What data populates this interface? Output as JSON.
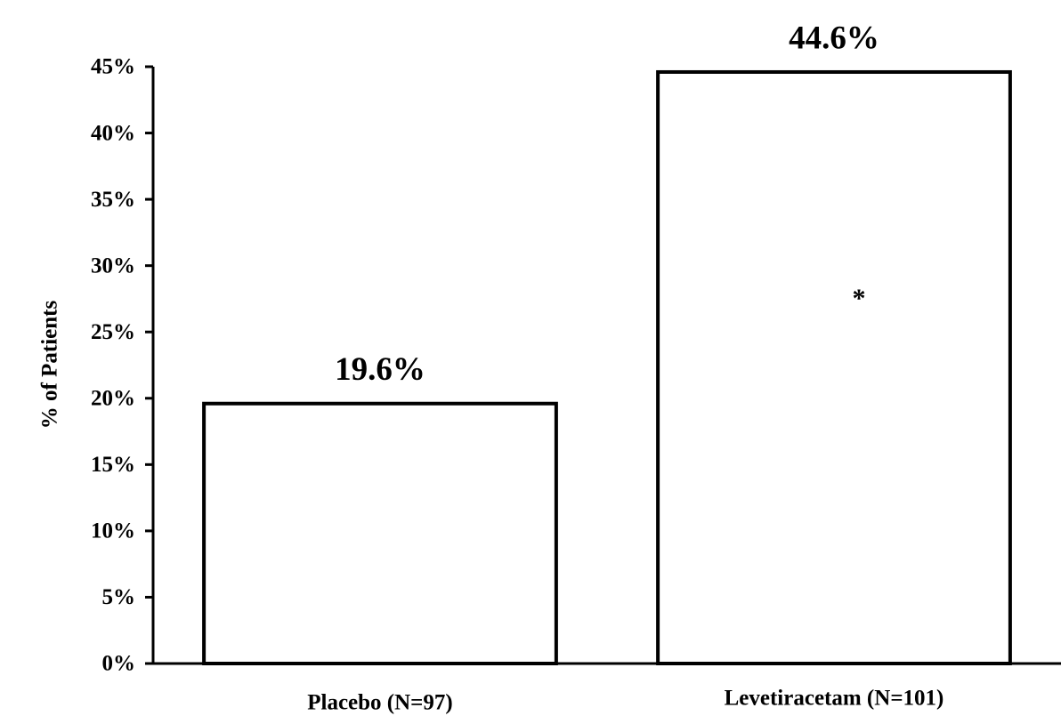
{
  "chart_data": {
    "type": "bar",
    "y_label": "% of Patients",
    "categories": [
      "Placebo (N=97)",
      "Levetiracetam (N=101)"
    ],
    "values": [
      19.6,
      44.6
    ],
    "value_labels": [
      "19.6%",
      "44.6%"
    ],
    "color": "#ffffff",
    "ylim": [
      0,
      45
    ],
    "yticks": [
      {
        "value": 0,
        "label": "0%"
      },
      {
        "value": 5,
        "label": "5%"
      },
      {
        "value": 10,
        "label": "10%"
      },
      {
        "value": 15,
        "label": "15%"
      },
      {
        "value": 20,
        "label": "20%"
      },
      {
        "value": 25,
        "label": "25%"
      },
      {
        "value": 30,
        "label": "30%"
      },
      {
        "value": 35,
        "label": "35%"
      },
      {
        "value": 40,
        "label": "40%"
      },
      {
        "value": 45,
        "label": "45%"
      }
    ],
    "grid": false,
    "annotation": "*"
  }
}
